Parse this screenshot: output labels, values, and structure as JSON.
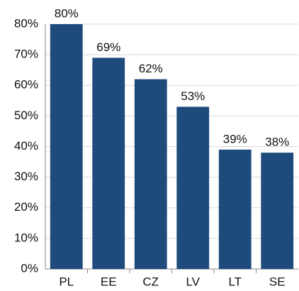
{
  "chart_data": {
    "type": "bar",
    "categories": [
      "PL",
      "EE",
      "CZ",
      "LV",
      "LT",
      "SE"
    ],
    "values": [
      80,
      69,
      62,
      53,
      39,
      38
    ],
    "value_labels": [
      "80%",
      "69%",
      "62%",
      "53%",
      "39%",
      "38%"
    ],
    "color": "#1e4a7c",
    "ylim": [
      0,
      80
    ],
    "yticks": [
      {
        "value": 0,
        "label": "0%"
      },
      {
        "value": 10,
        "label": "10%"
      },
      {
        "value": 20,
        "label": "20%"
      },
      {
        "value": 30,
        "label": "30%"
      },
      {
        "value": 40,
        "label": "40%"
      },
      {
        "value": 50,
        "label": "50%"
      },
      {
        "value": 60,
        "label": "60%"
      },
      {
        "value": 70,
        "label": "70%"
      },
      {
        "value": 80,
        "label": "80%"
      }
    ],
    "grid": true
  }
}
